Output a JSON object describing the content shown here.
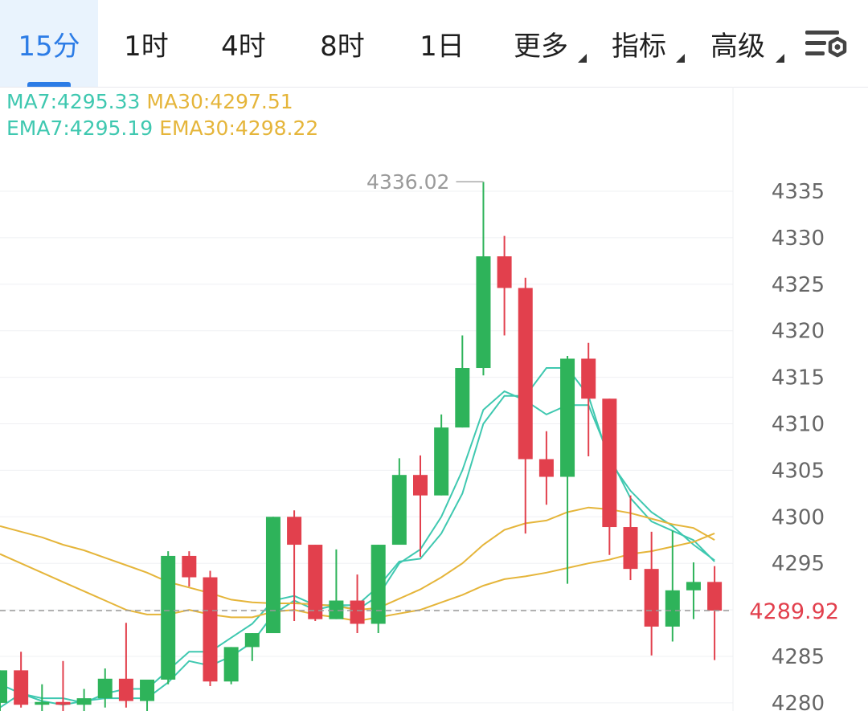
{
  "tabs": [
    {
      "label": "15分",
      "active": true,
      "dropdown": false
    },
    {
      "label": "1时",
      "active": false,
      "dropdown": false
    },
    {
      "label": "4时",
      "active": false,
      "dropdown": false
    },
    {
      "label": "8时",
      "active": false,
      "dropdown": false
    },
    {
      "label": "1日",
      "active": false,
      "dropdown": false
    },
    {
      "label": "更多",
      "active": false,
      "dropdown": true
    },
    {
      "label": "指标",
      "active": false,
      "dropdown": true
    },
    {
      "label": "高级",
      "active": false,
      "dropdown": true
    }
  ],
  "settings_icon": "chart-settings-icon",
  "indicators": {
    "ma7": "MA7:4295.33",
    "ma30": "MA30:4297.51",
    "ema7": "EMA7:4295.19",
    "ema30": "EMA30:4298.22"
  },
  "colors": {
    "up": "#2eb35a",
    "down": "#e2404d",
    "ma7": "#3fc8b0",
    "ma30": "#e5b53a",
    "active_tab": "#2c7ce6",
    "last_price": "#e2404d"
  },
  "chart_data": {
    "type": "candlestick",
    "y_ticks": [
      4280,
      4285,
      4290,
      4295,
      4300,
      4305,
      4310,
      4315,
      4320,
      4325,
      4330,
      4335
    ],
    "y_tick_labels": [
      "4280",
      "4285",
      "",
      "4295",
      "4300",
      "4305",
      "4310",
      "4315",
      "4320",
      "4325",
      "4330",
      "4335"
    ],
    "ylim": [
      4279.8,
      4340.0
    ],
    "last_price": 4289.92,
    "last_price_label": "4289.92",
    "high_marker": {
      "value": 4336.02,
      "label": "4336.02",
      "index": 23
    },
    "candles": [
      {
        "o": 4280.0,
        "h": 4283.5,
        "l": 4279.0,
        "c": 4283.5
      },
      {
        "o": 4283.5,
        "h": 4285.5,
        "l": 4279.5,
        "c": 4279.8
      },
      {
        "o": 4279.8,
        "h": 4282.0,
        "l": 4279.0,
        "c": 4280.1
      },
      {
        "o": 4280.1,
        "h": 4284.5,
        "l": 4279.0,
        "c": 4279.8
      },
      {
        "o": 4279.8,
        "h": 4281.5,
        "l": 4279.0,
        "c": 4280.5
      },
      {
        "o": 4280.5,
        "h": 4283.7,
        "l": 4279.5,
        "c": 4282.6
      },
      {
        "o": 4282.6,
        "h": 4288.6,
        "l": 4279.5,
        "c": 4280.2
      },
      {
        "o": 4280.2,
        "h": 4282.0,
        "l": 4279.0,
        "c": 4282.5
      },
      {
        "o": 4282.5,
        "h": 4296.3,
        "l": 4282.0,
        "c": 4295.8
      },
      {
        "o": 4295.8,
        "h": 4296.3,
        "l": 4292.5,
        "c": 4293.5
      },
      {
        "o": 4293.5,
        "h": 4294.2,
        "l": 4281.8,
        "c": 4282.3
      },
      {
        "o": 4282.3,
        "h": 4286.0,
        "l": 4282.0,
        "c": 4286.0
      },
      {
        "o": 4286.0,
        "h": 4287.5,
        "l": 4284.5,
        "c": 4287.5
      },
      {
        "o": 4287.5,
        "h": 4300.0,
        "l": 4287.5,
        "c": 4300.0
      },
      {
        "o": 4300.0,
        "h": 4300.7,
        "l": 4288.8,
        "c": 4297.0
      },
      {
        "o": 4297.0,
        "h": 4297.0,
        "l": 4288.8,
        "c": 4289.0
      },
      {
        "o": 4289.0,
        "h": 4296.5,
        "l": 4289.0,
        "c": 4291.0
      },
      {
        "o": 4291.0,
        "h": 4293.8,
        "l": 4287.5,
        "c": 4288.5
      },
      {
        "o": 4288.5,
        "h": 4297.0,
        "l": 4287.5,
        "c": 4297.0
      },
      {
        "o": 4297.0,
        "h": 4306.3,
        "l": 4297.0,
        "c": 4304.5
      },
      {
        "o": 4304.5,
        "h": 4306.6,
        "l": 4295.7,
        "c": 4302.3
      },
      {
        "o": 4302.3,
        "h": 4311.0,
        "l": 4302.3,
        "c": 4309.6
      },
      {
        "o": 4309.6,
        "h": 4319.5,
        "l": 4309.6,
        "c": 4316.0
      },
      {
        "o": 4316.0,
        "h": 4336.0,
        "l": 4315.2,
        "c": 4328.0
      },
      {
        "o": 4328.0,
        "h": 4330.2,
        "l": 4319.5,
        "c": 4324.6
      },
      {
        "o": 4324.6,
        "h": 4325.7,
        "l": 4298.2,
        "c": 4306.2
      },
      {
        "o": 4306.2,
        "h": 4309.2,
        "l": 4301.3,
        "c": 4304.3
      },
      {
        "o": 4304.3,
        "h": 4317.3,
        "l": 4292.8,
        "c": 4317.0
      },
      {
        "o": 4317.0,
        "h": 4318.7,
        "l": 4306.5,
        "c": 4312.7
      },
      {
        "o": 4312.7,
        "h": 4312.7,
        "l": 4295.9,
        "c": 4298.9
      },
      {
        "o": 4298.9,
        "h": 4302.3,
        "l": 4293.2,
        "c": 4294.4
      },
      {
        "o": 4294.4,
        "h": 4298.4,
        "l": 4285.1,
        "c": 4288.2
      },
      {
        "o": 4288.2,
        "h": 4298.5,
        "l": 4286.6,
        "c": 4292.1
      },
      {
        "o": 4292.1,
        "h": 4295.1,
        "l": 4289.0,
        "c": 4293.0
      },
      {
        "o": 4293.0,
        "h": 4294.7,
        "l": 4284.6,
        "c": 4289.92
      }
    ],
    "series": [
      {
        "name": "MA7",
        "color": "#3fc8b0",
        "start_index": 0,
        "values": [
          4279.5,
          4281.0,
          4280.5,
          4280.5,
          4280.0,
          4281.0,
          4281.5,
          4281.5,
          4283.5,
          4285.5,
          4285.5,
          4287.0,
          4288.5,
          4291.0,
          4291.5,
          4290.5,
          4290.5,
          4290.5,
          4292.5,
          4295.2,
          4295.5,
          4298.2,
          4302.5,
          4310.0,
          4313.0,
          4313.0,
          4316.0,
          4316.0,
          4313.0,
          4306.0,
          4302.8,
          4300.5,
          4299.0,
          4297.0,
          4295.33
        ]
      },
      {
        "name": "EMA7",
        "color": "#3fc8b0",
        "start_index": 0,
        "values": [
          4282.0,
          4281.0,
          4280.2,
          4279.8,
          4280.2,
          4280.5,
          4280.5,
          4280.5,
          4282.2,
          4284.5,
          4284.0,
          4285.0,
          4286.5,
          4289.5,
          4291.0,
          4290.0,
          4290.5,
          4290.0,
          4291.5,
          4295.0,
          4296.5,
          4300.0,
          4305.0,
          4311.5,
          4313.5,
          4312.5,
          4311.0,
          4312.0,
          4312.0,
          4306.5,
          4302.0,
          4299.5,
          4298.5,
          4297.5,
          4295.19
        ]
      },
      {
        "name": "MA30",
        "color": "#e5b53a",
        "start_index": 0,
        "values": [
          4299.0,
          4298.4,
          4297.8,
          4297.0,
          4296.4,
          4295.6,
          4294.8,
          4294.0,
          4293.0,
          4292.4,
          4291.8,
          4291.1,
          4290.8,
          4290.7,
          4290.7,
          4290.6,
          4290.4,
          4290.0,
          4290.2,
          4291.2,
          4292.2,
          4293.5,
          4295.0,
          4297.0,
          4298.6,
          4299.3,
          4299.6,
          4300.5,
          4301.0,
          4300.8,
          4300.4,
          4299.8,
          4299.2,
          4298.8,
          4297.51
        ]
      },
      {
        "name": "EMA30",
        "color": "#e5b53a",
        "start_index": 0,
        "values": [
          4296.0,
          4295.0,
          4294.0,
          4293.0,
          4292.0,
          4291.0,
          4290.0,
          4289.5,
          4289.5,
          4290.0,
          4289.5,
          4289.2,
          4289.2,
          4289.8,
          4290.0,
          4289.5,
          4289.2,
          4288.8,
          4289.2,
          4289.6,
          4290.0,
          4290.8,
          4291.6,
          4292.6,
          4293.3,
          4293.6,
          4294.0,
          4294.5,
          4295.0,
          4295.4,
          4296.0,
          4296.3,
          4296.8,
          4297.3,
          4298.22
        ]
      }
    ]
  }
}
